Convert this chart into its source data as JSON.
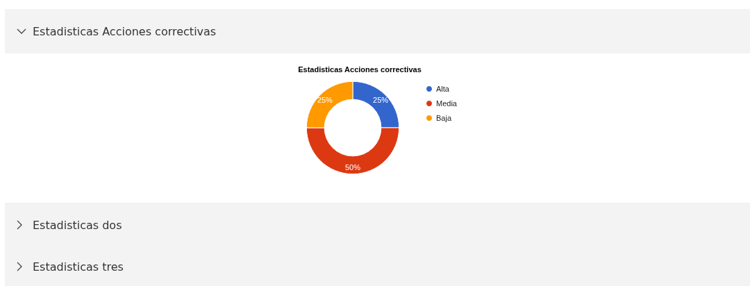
{
  "chart_data": {
    "type": "donut",
    "title": "Estadisticas Acciones correctivas",
    "categories": [
      "Alta",
      "Media",
      "Baja"
    ],
    "values": [
      25,
      50,
      25
    ],
    "value_labels": [
      "25%",
      "50%",
      "25%"
    ],
    "colors": [
      "#3366cc",
      "#dc3912",
      "#ff9900"
    ],
    "legend": "right",
    "annotations": [
      "Estadisticas Acciones correctivas",
      "Estadisticas dos",
      "Estadisticas tres"
    ]
  }
}
